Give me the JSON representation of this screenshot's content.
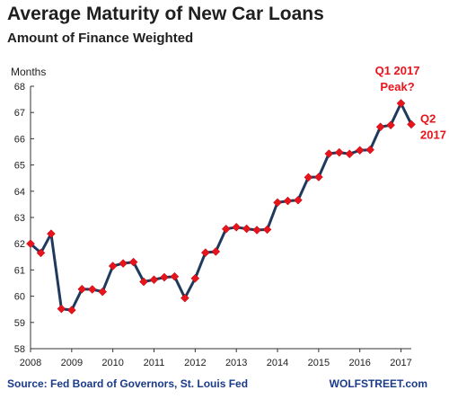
{
  "title": "Average Maturity of New Car Loans",
  "subtitle": "Amount of Finance Weighted",
  "source": "Source: Fed Board of Governors, St. Louis Fed",
  "brand": "WOLFSTREET.com",
  "colors": {
    "line": "#1f3a5c",
    "marker": "#e8141c",
    "annotation": "#e8141c",
    "footer": "#1a3a8a",
    "axis": "#333333"
  },
  "chart_data": {
    "type": "line",
    "ylabel": "Months",
    "ylim": [
      58,
      68
    ],
    "y_ticks": [
      58,
      59,
      60,
      61,
      62,
      63,
      64,
      65,
      66,
      67,
      68
    ],
    "x_tick_labels": [
      "2008",
      "2009",
      "2010",
      "2011",
      "2012",
      "2013",
      "2014",
      "2015",
      "2016",
      "2017"
    ],
    "grid": false,
    "x": [
      2008.0,
      2008.25,
      2008.5,
      2008.75,
      2009.0,
      2009.25,
      2009.5,
      2009.75,
      2010.0,
      2010.25,
      2010.5,
      2010.75,
      2011.0,
      2011.25,
      2011.5,
      2011.75,
      2012.0,
      2012.25,
      2012.5,
      2012.75,
      2013.0,
      2013.25,
      2013.5,
      2013.75,
      2014.0,
      2014.25,
      2014.5,
      2014.75,
      2015.0,
      2015.25,
      2015.5,
      2015.75,
      2016.0,
      2016.25,
      2016.5,
      2016.75,
      2017.0,
      2017.25
    ],
    "values": [
      62.0,
      61.65,
      62.38,
      59.52,
      59.47,
      60.27,
      60.26,
      60.17,
      61.15,
      61.25,
      61.3,
      60.55,
      60.63,
      60.72,
      60.75,
      59.93,
      60.68,
      61.66,
      61.7,
      62.56,
      62.63,
      62.57,
      62.52,
      62.54,
      63.57,
      63.63,
      63.66,
      64.53,
      64.54,
      65.43,
      65.48,
      65.42,
      65.56,
      65.58,
      66.45,
      66.52,
      67.35,
      66.55
    ],
    "annotations": [
      {
        "text_line1": "Q1 2017",
        "text_line2": "Peak?",
        "x": 2017.0,
        "y": 67.35
      },
      {
        "text_line1": "Q2",
        "text_line2": "2017",
        "x": 2017.25,
        "y": 66.55
      }
    ]
  }
}
